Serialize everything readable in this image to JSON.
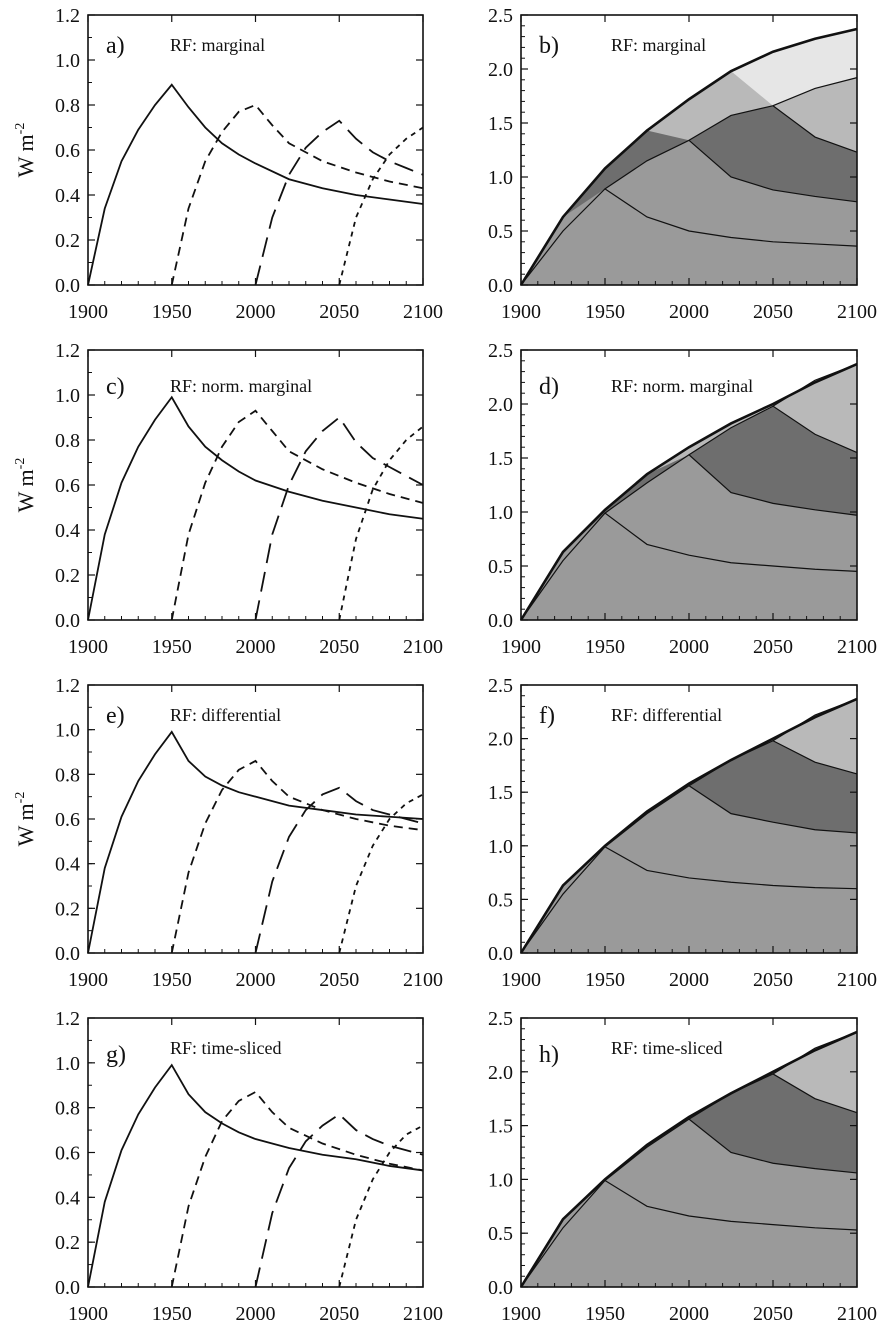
{
  "figure": {
    "x_ticks": [
      "1900",
      "1950",
      "2000",
      "2050",
      "2100"
    ],
    "left_y_ticks": [
      "0.0",
      "0.2",
      "0.4",
      "0.6",
      "0.8",
      "1.0",
      "1.2"
    ],
    "right_y_ticks": [
      "0.0",
      "0.5",
      "1.0",
      "1.5",
      "2.0",
      "2.5"
    ],
    "ylabel_main": "W m",
    "ylabel_sup": "-2"
  },
  "colors": {
    "axis": "#111111",
    "line": "#111111",
    "shade_1900": "#9a9a9a",
    "shade_1950": "#6e6e6e",
    "shade_2000": "#b9b9b9",
    "shade_2050": "#e6e6e6"
  },
  "chart_data": [
    {
      "type": "line",
      "panel": "a)",
      "title": "RF: marginal",
      "ylabel": "W m-2",
      "xlim": [
        1900,
        2100
      ],
      "ylim": [
        0,
        1.2
      ],
      "grid": false,
      "series": [
        {
          "style": "solid",
          "x": [
            1900,
            1910,
            1920,
            1930,
            1940,
            1950,
            1960,
            1970,
            1980,
            1990,
            2000,
            2020,
            2040,
            2060,
            2080,
            2100
          ],
          "values": [
            0,
            0.34,
            0.55,
            0.69,
            0.8,
            0.89,
            0.79,
            0.7,
            0.63,
            0.58,
            0.54,
            0.47,
            0.43,
            0.4,
            0.38,
            0.36
          ]
        },
        {
          "style": "short-dash",
          "x": [
            1950,
            1960,
            1970,
            1980,
            1990,
            2000,
            2010,
            2020,
            2040,
            2060,
            2080,
            2100
          ],
          "values": [
            0,
            0.34,
            0.55,
            0.68,
            0.77,
            0.8,
            0.71,
            0.63,
            0.55,
            0.5,
            0.46,
            0.43
          ]
        },
        {
          "style": "long-dash",
          "x": [
            2000,
            2010,
            2020,
            2030,
            2040,
            2050,
            2060,
            2070,
            2080,
            2090,
            2100
          ],
          "values": [
            0,
            0.3,
            0.49,
            0.61,
            0.68,
            0.73,
            0.65,
            0.59,
            0.55,
            0.52,
            0.49
          ]
        },
        {
          "style": "dotted-dash",
          "x": [
            2050,
            2060,
            2070,
            2080,
            2090,
            2100
          ],
          "values": [
            0,
            0.3,
            0.47,
            0.58,
            0.65,
            0.7
          ]
        }
      ]
    },
    {
      "type": "area",
      "panel": "b)",
      "title": "RF: marginal",
      "ylabel": "",
      "xlim": [
        1900,
        2100
      ],
      "ylim": [
        0,
        2.5
      ],
      "grid": false,
      "x": [
        1900,
        1925,
        1950,
        1975,
        2000,
        2025,
        2050,
        2075,
        2100
      ],
      "total": [
        0,
        0.63,
        1.08,
        1.43,
        1.72,
        1.98,
        2.16,
        2.28,
        2.37
      ],
      "series": [
        {
          "start": 1900,
          "values": [
            0,
            0.5,
            0.89,
            0.63,
            0.5,
            0.44,
            0.4,
            0.38,
            0.36
          ]
        },
        {
          "start": 1950,
          "values": [
            null,
            null,
            0.89,
            1.15,
            1.34,
            1.0,
            0.88,
            0.82,
            0.77
          ]
        },
        {
          "start": 2000,
          "values": [
            null,
            null,
            null,
            null,
            1.34,
            1.57,
            1.66,
            1.37,
            1.23
          ]
        },
        {
          "start": 2050,
          "values": [
            null,
            null,
            null,
            null,
            null,
            null,
            1.66,
            1.82,
            1.92
          ]
        }
      ]
    },
    {
      "type": "line",
      "panel": "c)",
      "title": "RF: norm. marginal",
      "ylabel": "W m-2",
      "xlim": [
        1900,
        2100
      ],
      "ylim": [
        0,
        1.2
      ],
      "grid": false,
      "series": [
        {
          "style": "solid",
          "x": [
            1900,
            1910,
            1920,
            1930,
            1940,
            1950,
            1960,
            1970,
            1980,
            1990,
            2000,
            2020,
            2040,
            2060,
            2080,
            2100
          ],
          "values": [
            0,
            0.38,
            0.61,
            0.77,
            0.89,
            0.99,
            0.86,
            0.77,
            0.71,
            0.66,
            0.62,
            0.57,
            0.53,
            0.5,
            0.47,
            0.45
          ]
        },
        {
          "style": "short-dash",
          "x": [
            1950,
            1960,
            1970,
            1980,
            1990,
            2000,
            2010,
            2020,
            2040,
            2060,
            2080,
            2100
          ],
          "values": [
            0,
            0.38,
            0.61,
            0.77,
            0.88,
            0.93,
            0.84,
            0.75,
            0.67,
            0.61,
            0.56,
            0.52
          ]
        },
        {
          "style": "long-dash",
          "x": [
            2000,
            2010,
            2020,
            2030,
            2040,
            2050,
            2060,
            2070,
            2080,
            2090,
            2100
          ],
          "values": [
            0,
            0.38,
            0.6,
            0.75,
            0.84,
            0.9,
            0.79,
            0.72,
            0.68,
            0.64,
            0.6
          ]
        },
        {
          "style": "dotted-dash",
          "x": [
            2050,
            2060,
            2070,
            2080,
            2090,
            2100
          ],
          "values": [
            0,
            0.36,
            0.58,
            0.71,
            0.8,
            0.86
          ]
        }
      ]
    },
    {
      "type": "area",
      "panel": "d)",
      "title": "RF: norm. marginal",
      "ylabel": "",
      "xlim": [
        1900,
        2100
      ],
      "ylim": [
        0,
        2.5
      ],
      "grid": false,
      "x": [
        1900,
        1925,
        1950,
        1975,
        2000,
        2025,
        2050,
        2075,
        2100
      ],
      "total": [
        0,
        0.63,
        1.02,
        1.35,
        1.6,
        1.82,
        2.0,
        2.2,
        2.37
      ],
      "series": [
        {
          "start": 1900,
          "values": [
            0,
            0.55,
            0.99,
            0.7,
            0.6,
            0.53,
            0.5,
            0.47,
            0.45
          ]
        },
        {
          "start": 1950,
          "values": [
            null,
            null,
            0.99,
            1.27,
            1.53,
            1.18,
            1.08,
            1.02,
            0.97
          ]
        },
        {
          "start": 2000,
          "values": [
            null,
            null,
            null,
            null,
            1.53,
            1.78,
            1.98,
            1.72,
            1.55
          ]
        },
        {
          "start": 2050,
          "values": [
            null,
            null,
            null,
            null,
            null,
            null,
            1.98,
            2.22,
            2.37
          ]
        }
      ]
    },
    {
      "type": "line",
      "panel": "e)",
      "title": "RF: differential",
      "ylabel": "W m-2",
      "xlim": [
        1900,
        2100
      ],
      "ylim": [
        0,
        1.2
      ],
      "grid": false,
      "series": [
        {
          "style": "solid",
          "x": [
            1900,
            1910,
            1920,
            1930,
            1940,
            1950,
            1960,
            1970,
            1980,
            1990,
            2000,
            2020,
            2040,
            2060,
            2080,
            2100
          ],
          "values": [
            0,
            0.38,
            0.61,
            0.77,
            0.89,
            0.99,
            0.86,
            0.79,
            0.75,
            0.72,
            0.7,
            0.66,
            0.64,
            0.62,
            0.61,
            0.6
          ]
        },
        {
          "style": "short-dash",
          "x": [
            1950,
            1960,
            1970,
            1980,
            1990,
            2000,
            2010,
            2020,
            2040,
            2060,
            2080,
            2100
          ],
          "values": [
            0,
            0.36,
            0.58,
            0.73,
            0.82,
            0.86,
            0.77,
            0.7,
            0.64,
            0.6,
            0.57,
            0.55
          ]
        },
        {
          "style": "long-dash",
          "x": [
            2000,
            2010,
            2020,
            2030,
            2040,
            2050,
            2060,
            2070,
            2080,
            2090,
            2100
          ],
          "values": [
            0,
            0.32,
            0.52,
            0.64,
            0.71,
            0.74,
            0.68,
            0.64,
            0.62,
            0.6,
            0.58
          ]
        },
        {
          "style": "dotted-dash",
          "x": [
            2050,
            2060,
            2070,
            2080,
            2090,
            2100
          ],
          "values": [
            0,
            0.3,
            0.48,
            0.6,
            0.67,
            0.71
          ]
        }
      ]
    },
    {
      "type": "area",
      "panel": "f)",
      "title": "RF: differential",
      "ylabel": "",
      "xlim": [
        1900,
        2100
      ],
      "ylim": [
        0,
        2.5
      ],
      "grid": false,
      "x": [
        1900,
        1925,
        1950,
        1975,
        2000,
        2025,
        2050,
        2075,
        2100
      ],
      "total": [
        0,
        0.63,
        1.0,
        1.32,
        1.58,
        1.8,
        2.0,
        2.2,
        2.37
      ],
      "series": [
        {
          "start": 1900,
          "values": [
            0,
            0.55,
            0.99,
            0.77,
            0.7,
            0.66,
            0.63,
            0.61,
            0.6
          ]
        },
        {
          "start": 1950,
          "values": [
            null,
            null,
            0.99,
            1.3,
            1.56,
            1.3,
            1.22,
            1.15,
            1.12
          ]
        },
        {
          "start": 2000,
          "values": [
            null,
            null,
            null,
            null,
            1.56,
            1.8,
            1.98,
            1.78,
            1.67
          ]
        },
        {
          "start": 2050,
          "values": [
            null,
            null,
            null,
            null,
            null,
            null,
            1.98,
            2.22,
            2.37
          ]
        }
      ]
    },
    {
      "type": "line",
      "panel": "g)",
      "title": "RF: time-sliced",
      "ylabel": "",
      "xlim": [
        1900,
        2100
      ],
      "ylim": [
        0,
        1.2
      ],
      "grid": false,
      "series": [
        {
          "style": "solid",
          "x": [
            1900,
            1910,
            1920,
            1930,
            1940,
            1950,
            1960,
            1970,
            1980,
            1990,
            2000,
            2020,
            2040,
            2060,
            2080,
            2100
          ],
          "values": [
            0,
            0.38,
            0.61,
            0.77,
            0.89,
            0.99,
            0.86,
            0.78,
            0.73,
            0.69,
            0.66,
            0.62,
            0.59,
            0.57,
            0.54,
            0.52
          ]
        },
        {
          "style": "short-dash",
          "x": [
            1950,
            1960,
            1970,
            1980,
            1990,
            2000,
            2010,
            2020,
            2040,
            2060,
            2080,
            2100
          ],
          "values": [
            0,
            0.36,
            0.58,
            0.74,
            0.83,
            0.87,
            0.78,
            0.71,
            0.64,
            0.59,
            0.55,
            0.52
          ]
        },
        {
          "style": "long-dash",
          "x": [
            2000,
            2010,
            2020,
            2030,
            2040,
            2050,
            2060,
            2070,
            2080,
            2090,
            2100
          ],
          "values": [
            0,
            0.33,
            0.53,
            0.65,
            0.72,
            0.77,
            0.7,
            0.66,
            0.63,
            0.61,
            0.59
          ]
        },
        {
          "style": "dotted-dash",
          "x": [
            2050,
            2060,
            2070,
            2080,
            2090,
            2100
          ],
          "values": [
            0,
            0.3,
            0.48,
            0.6,
            0.68,
            0.72
          ]
        }
      ]
    },
    {
      "type": "area",
      "panel": "h)",
      "title": "RF: time-sliced",
      "ylabel": "",
      "xlim": [
        1900,
        2100
      ],
      "ylim": [
        0,
        2.5
      ],
      "grid": false,
      "x": [
        1900,
        1925,
        1950,
        1975,
        2000,
        2025,
        2050,
        2075,
        2100
      ],
      "total": [
        0,
        0.63,
        1.0,
        1.32,
        1.58,
        1.8,
        2.0,
        2.2,
        2.37
      ],
      "series": [
        {
          "start": 1900,
          "values": [
            0,
            0.55,
            0.99,
            0.75,
            0.66,
            0.61,
            0.58,
            0.55,
            0.53
          ]
        },
        {
          "start": 1950,
          "values": [
            null,
            null,
            0.99,
            1.3,
            1.56,
            1.25,
            1.15,
            1.1,
            1.06
          ]
        },
        {
          "start": 2000,
          "values": [
            null,
            null,
            null,
            null,
            1.56,
            1.8,
            1.98,
            1.75,
            1.62
          ]
        },
        {
          "start": 2050,
          "values": [
            null,
            null,
            null,
            null,
            null,
            null,
            1.98,
            2.22,
            2.37
          ]
        }
      ]
    }
  ]
}
